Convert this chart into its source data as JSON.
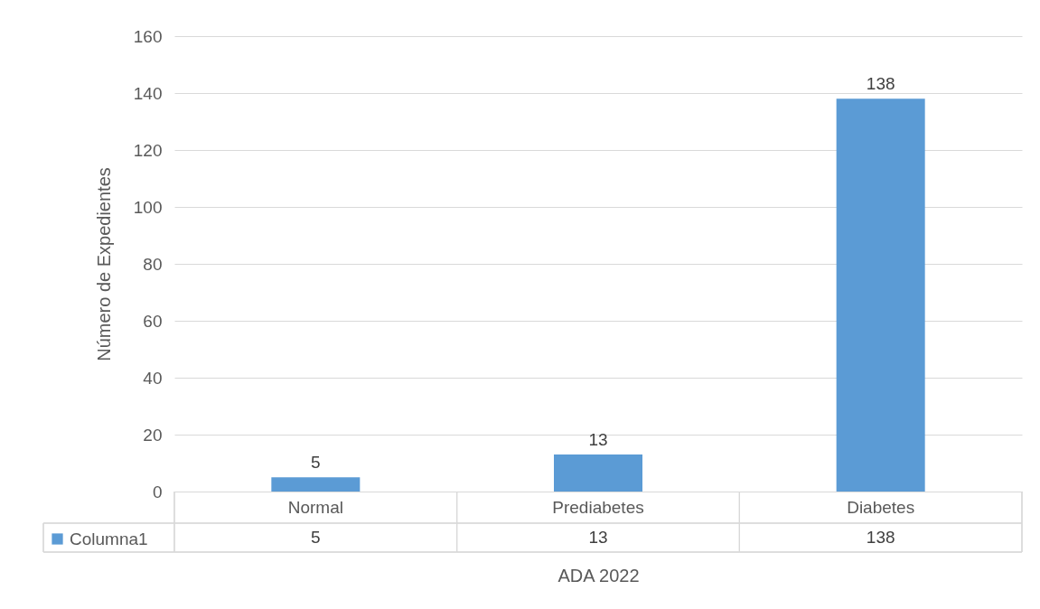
{
  "chart_data": {
    "type": "bar",
    "categories": [
      "Normal",
      "Prediabetes",
      "Diabetes"
    ],
    "series": [
      {
        "name": "Columna1",
        "color": "#5b9bd5",
        "values": [
          5,
          13,
          138
        ],
        "value_labels": [
          "5",
          "13",
          "138"
        ]
      }
    ],
    "xlabel": "ADA 2022",
    "ylabel": "Número de Expedientes",
    "ylim": [
      0,
      160
    ],
    "yticks": [
      0,
      20,
      40,
      60,
      80,
      100,
      120,
      140,
      160
    ],
    "grid": "y",
    "data_labels": true,
    "annotations": [
      "5",
      "13",
      "138"
    ],
    "legend": "bottom left"
  }
}
